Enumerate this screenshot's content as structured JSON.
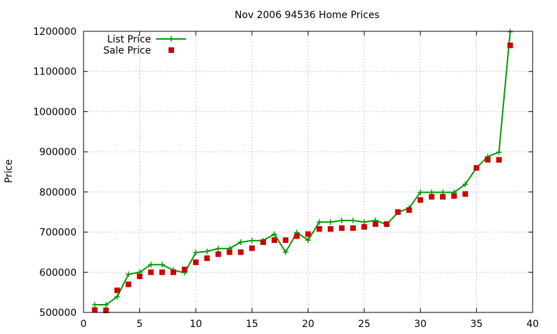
{
  "chart_data": {
    "type": "line",
    "title": "Nov 2006 94536 Home Prices",
    "xlabel": "",
    "ylabel": "Price",
    "xlim": [
      0,
      40
    ],
    "ylim": [
      500000,
      1200000
    ],
    "xticks": [
      0,
      5,
      10,
      15,
      20,
      25,
      30,
      35,
      40
    ],
    "yticks": [
      500000,
      600000,
      700000,
      800000,
      900000,
      1000000,
      1100000,
      1200000
    ],
    "grid": true,
    "legend_position": "top-left",
    "series": [
      {
        "name": "List Price",
        "style": "line-plus",
        "color": "#009900",
        "x": [
          1,
          2,
          3,
          4,
          5,
          6,
          7,
          8,
          9,
          10,
          11,
          12,
          13,
          14,
          15,
          16,
          17,
          18,
          19,
          20,
          21,
          22,
          23,
          24,
          25,
          26,
          27,
          28,
          29,
          30,
          31,
          32,
          33,
          34,
          35,
          36,
          37,
          38
        ],
        "y": [
          519000,
          519000,
          539000,
          595000,
          600000,
          619000,
          619000,
          605000,
          599000,
          649000,
          652000,
          659000,
          659000,
          675000,
          679000,
          679000,
          695000,
          650000,
          699000,
          680000,
          725000,
          725000,
          729000,
          729000,
          725000,
          729000,
          719000,
          749000,
          760000,
          799000,
          799000,
          799000,
          799000,
          819000,
          860000,
          888000,
          899000,
          1199000
        ]
      },
      {
        "name": "Sale Price",
        "style": "square-points",
        "color": "#cc0000",
        "x": [
          1,
          2,
          3,
          4,
          5,
          6,
          7,
          8,
          9,
          10,
          11,
          12,
          13,
          14,
          15,
          16,
          17,
          18,
          19,
          20,
          21,
          22,
          23,
          24,
          25,
          26,
          27,
          28,
          29,
          30,
          31,
          32,
          33,
          34,
          35,
          36,
          37,
          38
        ],
        "y": [
          506000,
          505000,
          555000,
          570000,
          590000,
          600000,
          600000,
          600000,
          607000,
          625000,
          635000,
          645000,
          650000,
          650000,
          660000,
          675000,
          680000,
          680000,
          690000,
          695000,
          708000,
          708000,
          710000,
          710000,
          713000,
          720000,
          720000,
          750000,
          755000,
          780000,
          788000,
          788000,
          790000,
          795000,
          860000,
          880000,
          880000,
          1165000
        ]
      }
    ]
  }
}
